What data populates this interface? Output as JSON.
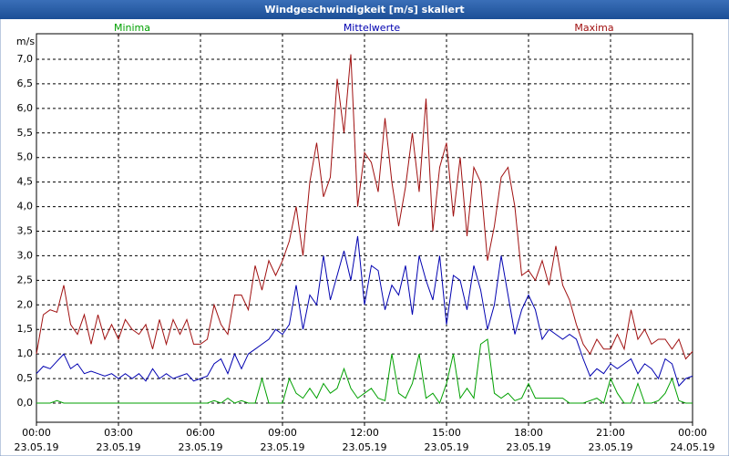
{
  "chart_data": {
    "type": "line",
    "title": "Windgeschwindigkeit [m/s] skaliert",
    "y_label": "m/s",
    "x": [
      0,
      0.25,
      0.5,
      0.75,
      1,
      1.25,
      1.5,
      1.75,
      2,
      2.25,
      2.5,
      2.75,
      3,
      3.25,
      3.5,
      3.75,
      4,
      4.25,
      4.5,
      4.75,
      5,
      5.25,
      5.5,
      5.75,
      6,
      6.25,
      6.5,
      6.75,
      7,
      7.25,
      7.5,
      7.75,
      8,
      8.25,
      8.5,
      8.75,
      9,
      9.25,
      9.5,
      9.75,
      10,
      10.25,
      10.5,
      10.75,
      11,
      11.25,
      11.5,
      11.75,
      12,
      12.25,
      12.5,
      12.75,
      13,
      13.25,
      13.5,
      13.75,
      14,
      14.25,
      14.5,
      14.75,
      15,
      15.25,
      15.5,
      15.75,
      16,
      16.25,
      16.5,
      16.75,
      17,
      17.25,
      17.5,
      17.75,
      18,
      18.25,
      18.5,
      18.75,
      19,
      19.25,
      19.5,
      19.75,
      20,
      20.25,
      20.5,
      20.75,
      21,
      21.25,
      21.5,
      21.75,
      22,
      22.25,
      22.5,
      22.75,
      23,
      23.25,
      23.5,
      23.75,
      24
    ],
    "series": [
      {
        "name": "Minima",
        "color": "#00a000",
        "values": [
          0,
          0,
          0,
          0.05,
          0,
          0,
          0,
          0,
          0,
          0,
          0,
          0,
          0,
          0,
          0,
          0,
          0,
          0,
          0,
          0,
          0,
          0,
          0,
          0,
          0,
          0,
          0.05,
          0,
          0.1,
          0,
          0.05,
          0,
          0,
          0.5,
          0,
          0,
          0,
          0.5,
          0.2,
          0.1,
          0.3,
          0.1,
          0.4,
          0.2,
          0.3,
          0.7,
          0.3,
          0.1,
          0.2,
          0.3,
          0.1,
          0.05,
          1.0,
          0.2,
          0.1,
          0.4,
          1.0,
          0.1,
          0.2,
          0,
          0.4,
          1.0,
          0.1,
          0.3,
          0.1,
          1.2,
          1.3,
          0.2,
          0.1,
          0.2,
          0.05,
          0.1,
          0.4,
          0.1,
          0.1,
          0.1,
          0.1,
          0.1,
          0,
          0,
          0,
          0.05,
          0.1,
          0,
          0.5,
          0.2,
          0,
          0,
          0.4,
          0,
          0,
          0.05,
          0.2,
          0.5,
          0.05,
          0,
          0
        ]
      },
      {
        "name": "Mittelwerte",
        "color": "#0000b0",
        "values": [
          0.6,
          0.75,
          0.7,
          0.85,
          1.0,
          0.7,
          0.8,
          0.6,
          0.65,
          0.6,
          0.55,
          0.6,
          0.5,
          0.6,
          0.5,
          0.6,
          0.45,
          0.7,
          0.5,
          0.6,
          0.5,
          0.55,
          0.6,
          0.45,
          0.5,
          0.55,
          0.8,
          0.9,
          0.6,
          1.0,
          0.7,
          1.0,
          1.1,
          1.2,
          1.3,
          1.5,
          1.4,
          1.6,
          2.4,
          1.5,
          2.2,
          2.0,
          3.0,
          2.1,
          2.6,
          3.1,
          2.5,
          3.4,
          2.0,
          2.8,
          2.7,
          1.9,
          2.4,
          2.2,
          2.8,
          1.8,
          3.0,
          2.5,
          2.1,
          3.0,
          1.6,
          2.6,
          2.5,
          1.9,
          2.8,
          2.3,
          1.5,
          2.0,
          3.0,
          2.2,
          1.4,
          1.9,
          2.2,
          1.9,
          1.3,
          1.5,
          1.4,
          1.3,
          1.4,
          1.3,
          0.9,
          0.55,
          0.7,
          0.6,
          0.8,
          0.7,
          0.8,
          0.9,
          0.6,
          0.8,
          0.7,
          0.5,
          0.9,
          0.8,
          0.35,
          0.5,
          0.55
        ]
      },
      {
        "name": "Maxima",
        "color": "#a01010",
        "values": [
          1.0,
          1.8,
          1.9,
          1.85,
          2.4,
          1.6,
          1.4,
          1.8,
          1.2,
          1.8,
          1.3,
          1.6,
          1.3,
          1.7,
          1.5,
          1.4,
          1.6,
          1.1,
          1.7,
          1.2,
          1.7,
          1.4,
          1.7,
          1.2,
          1.2,
          1.3,
          2.0,
          1.6,
          1.4,
          2.2,
          2.2,
          1.9,
          2.8,
          2.3,
          2.9,
          2.6,
          2.9,
          3.3,
          4.0,
          3.0,
          4.5,
          5.3,
          4.2,
          4.6,
          6.6,
          5.5,
          7.1,
          4.0,
          5.1,
          4.9,
          4.3,
          5.8,
          4.5,
          3.6,
          4.4,
          5.5,
          4.3,
          6.2,
          3.5,
          4.8,
          5.3,
          3.8,
          5.0,
          3.4,
          4.8,
          4.5,
          2.9,
          3.6,
          4.6,
          4.8,
          4.0,
          2.6,
          2.7,
          2.5,
          2.9,
          2.4,
          3.2,
          2.4,
          2.1,
          1.6,
          1.2,
          1.0,
          1.3,
          1.1,
          1.1,
          1.4,
          1.1,
          1.9,
          1.3,
          1.5,
          1.2,
          1.3,
          1.3,
          1.1,
          1.3,
          0.9,
          1.05
        ]
      }
    ],
    "xlim": [
      0,
      24
    ],
    "xticks": [
      {
        "value": 0,
        "label": "00:00"
      },
      {
        "value": 3,
        "label": "03:00"
      },
      {
        "value": 6,
        "label": "06:00"
      },
      {
        "value": 9,
        "label": "09:00"
      },
      {
        "value": 12,
        "label": "12:00"
      },
      {
        "value": 15,
        "label": "15:00"
      },
      {
        "value": 18,
        "label": "18:00"
      },
      {
        "value": 21,
        "label": "21:00"
      },
      {
        "value": 24,
        "label": "00:00"
      }
    ],
    "xtick_dates": [
      "23.05.19",
      "23.05.19",
      "23.05.19",
      "23.05.19",
      "23.05.19",
      "23.05.19",
      "23.05.19",
      "23.05.19",
      "24.05.19"
    ],
    "ylim": [
      -0.39,
      7.52
    ],
    "yticks": [
      {
        "value": 0,
        "label": "0,0"
      },
      {
        "value": 0.5,
        "label": "0,5"
      },
      {
        "value": 1,
        "label": "1,0"
      },
      {
        "value": 1.5,
        "label": "1,5"
      },
      {
        "value": 2,
        "label": "2,0"
      },
      {
        "value": 2.5,
        "label": "2,5"
      },
      {
        "value": 3,
        "label": "3,0"
      },
      {
        "value": 3.5,
        "label": "3,5"
      },
      {
        "value": 4,
        "label": "4,0"
      },
      {
        "value": 4.5,
        "label": "4,5"
      },
      {
        "value": 5,
        "label": "5,0"
      },
      {
        "value": 5.5,
        "label": "5,5"
      },
      {
        "value": 6,
        "label": "6,0"
      },
      {
        "value": 6.5,
        "label": "6,5"
      },
      {
        "value": 7,
        "label": "7,0"
      }
    ],
    "grid": true
  }
}
